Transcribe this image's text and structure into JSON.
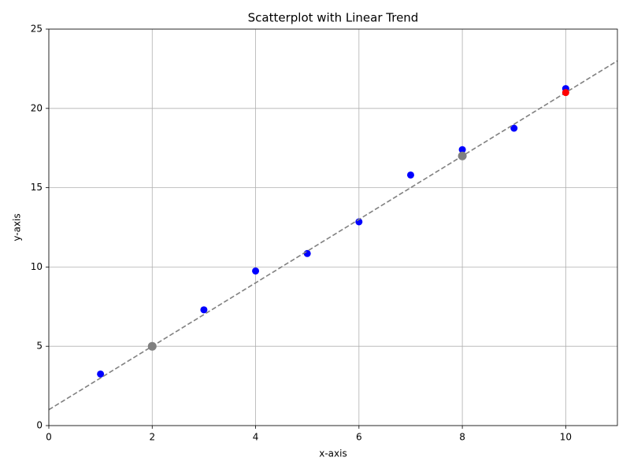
{
  "chart_data": {
    "type": "scatter",
    "title": "Scatterplot with Linear Trend",
    "x_label": "x-axis",
    "y_label": "y-axis",
    "xlim": [
      0,
      11
    ],
    "ylim": [
      0,
      25
    ],
    "xticks": [
      0,
      2,
      4,
      6,
      8,
      10
    ],
    "yticks": [
      0,
      5,
      10,
      15,
      20,
      25
    ],
    "grid": true,
    "series": [
      {
        "type": "scatter",
        "color": "#0000ff",
        "size": 4.5,
        "x": [
          1,
          3,
          4,
          5,
          6,
          7,
          8,
          9,
          10
        ],
        "values": [
          3.25,
          7.3,
          9.75,
          10.85,
          12.85,
          15.8,
          17.4,
          18.75,
          21.25
        ]
      },
      {
        "type": "line",
        "color": "#808080",
        "dashed": true,
        "x": [
          0,
          11
        ],
        "values": [
          1,
          23
        ]
      },
      {
        "type": "scatter",
        "color": "#808080",
        "size": 5.5,
        "x": [
          2,
          8
        ],
        "values": [
          5,
          17
        ]
      },
      {
        "type": "scatter",
        "color": "#ff0000",
        "size": 4.5,
        "x": [
          10
        ],
        "values": [
          21
        ]
      }
    ]
  }
}
